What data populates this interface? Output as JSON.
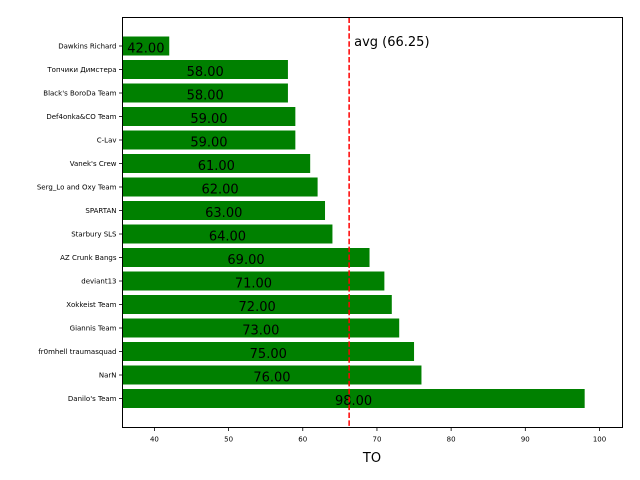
{
  "chart_data": {
    "type": "bar",
    "orientation": "horizontal",
    "categories": [
      "Danilo's Team",
      "NarN",
      "fr0mhell traumasquad",
      "Giannis Team",
      "Xokkeist Team",
      "deviant13",
      "AZ Crunk Bangs",
      "Starbury SLS",
      "SPARTAN",
      "Serg_Lo and Oxy Team",
      "Vanek's Crew",
      "C-Lav",
      "Def4onka&CO Team",
      "Black's BoroDa Team",
      "Топчики Димстера",
      "Dawkins Richard"
    ],
    "values": [
      98,
      76,
      75,
      73,
      72,
      71,
      69,
      64,
      63,
      62,
      61,
      59,
      59,
      58,
      58,
      42
    ],
    "value_labels": [
      "98.00",
      "76.00",
      "75.00",
      "73.00",
      "72.00",
      "71.00",
      "69.00",
      "64.00",
      "63.00",
      "62.00",
      "61.00",
      "59.00",
      "59.00",
      "58.00",
      "58.00",
      "42.00"
    ],
    "xlabel": "TO",
    "ylabel": "",
    "title": "",
    "xlim": [
      35.7,
      103.1
    ],
    "xticks": [
      40,
      50,
      60,
      70,
      80,
      90,
      100
    ],
    "bar_color": "#008000",
    "reference_line": {
      "value": 66.25,
      "label": "avg (66.25)",
      "color": "#ff0000",
      "style": "dashed"
    },
    "grid": false,
    "legend": "none"
  }
}
